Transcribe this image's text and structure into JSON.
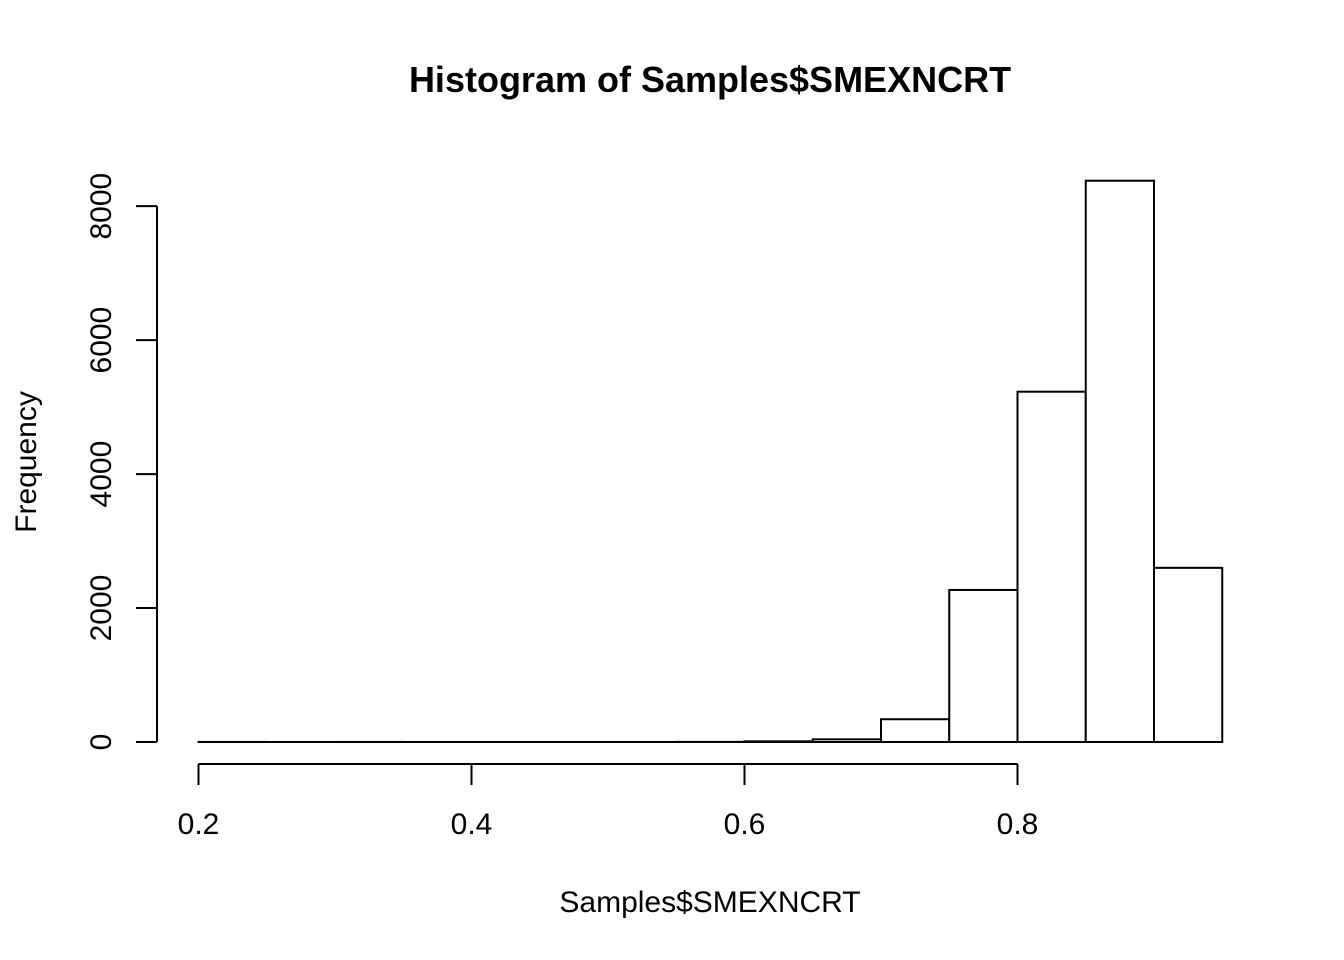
{
  "chart_data": {
    "type": "bar",
    "title": "Histogram of Samples$SMEXNCRT",
    "xlabel": "Samples$SMEXNCRT",
    "ylabel": "Frequency",
    "bin_edges": [
      0.2,
      0.25,
      0.3,
      0.35,
      0.4,
      0.45,
      0.5,
      0.55,
      0.6,
      0.65,
      0.7,
      0.75,
      0.8,
      0.85,
      0.9,
      0.95
    ],
    "values": [
      1,
      0,
      1,
      0,
      0,
      0,
      0,
      2,
      10,
      40,
      340,
      2270,
      5230,
      8380,
      2600
    ],
    "xlim": [
      0.2,
      0.95
    ],
    "ylim": [
      0,
      8400
    ],
    "x_ticks": [
      0.2,
      0.4,
      0.6,
      0.8
    ],
    "x_tick_labels": [
      "0.2",
      "0.4",
      "0.6",
      "0.8"
    ],
    "y_ticks": [
      0,
      2000,
      4000,
      6000,
      8000
    ],
    "y_tick_labels": [
      "0",
      "2000",
      "4000",
      "6000",
      "8000"
    ],
    "grid": false,
    "bar_fill": "#ffffff",
    "bar_stroke": "#000000"
  }
}
